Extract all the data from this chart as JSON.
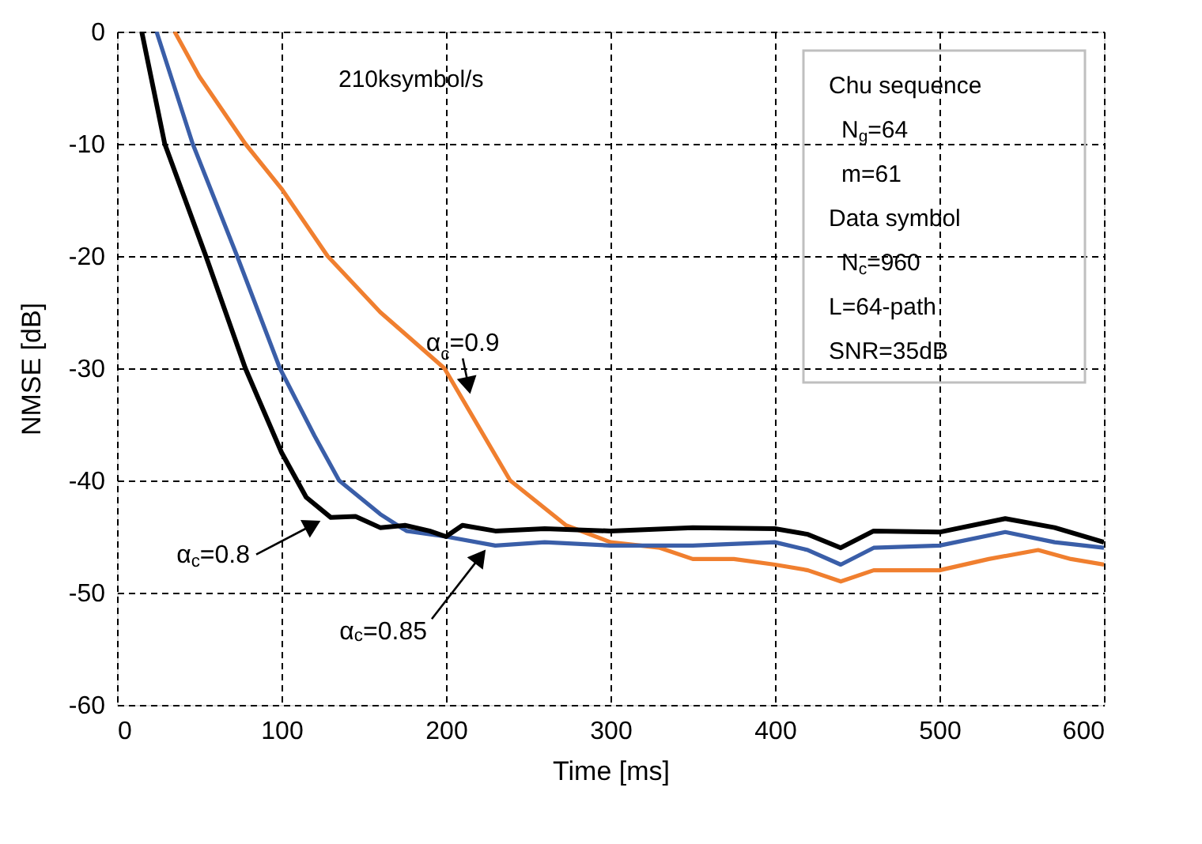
{
  "chart_data": {
    "type": "line",
    "xlabel": "Time [ms]",
    "ylabel": "NMSE [dB]",
    "xlim": [
      0,
      600
    ],
    "ylim": [
      -60,
      0
    ],
    "xticks": [
      0,
      100,
      200,
      300,
      400,
      500,
      600
    ],
    "yticks": [
      -60,
      -50,
      -40,
      -30,
      -20,
      -10,
      0
    ],
    "grid": true,
    "legend": false,
    "line_style": "solid",
    "marker": "none",
    "series": [
      {
        "color": "#f07f2f",
        "x": [
          35,
          50,
          78,
          100,
          128,
          160,
          199,
          239,
          273,
          300,
          330,
          350,
          375,
          400,
          420,
          440,
          460,
          500,
          530,
          560,
          580,
          600
        ],
        "values": [
          0,
          -4,
          -10,
          -14,
          -20,
          -25,
          -30,
          -40,
          -44,
          -45.5,
          -46,
          -47,
          -47,
          -47.5,
          -48,
          -49,
          -48,
          -48,
          -47,
          -46.2,
          -47,
          -47.5
        ]
      },
      {
        "color": "#3a5ea8",
        "x": [
          24,
          46,
          73,
          99,
          120,
          135,
          160,
          176,
          200,
          230,
          260,
          300,
          350,
          400,
          420,
          440,
          460,
          500,
          540,
          570,
          600
        ],
        "values": [
          0,
          -10,
          -20,
          -30,
          -36,
          -40,
          -43,
          -44.5,
          -45,
          -45.8,
          -45.5,
          -45.8,
          -45.8,
          -45.5,
          -46.2,
          -47.5,
          -46,
          -45.8,
          -44.6,
          -45.5,
          -46
        ]
      },
      {
        "color": "#000000",
        "x": [
          15,
          29,
          54,
          78,
          100,
          115,
          130,
          145,
          160,
          175,
          190,
          200,
          210,
          230,
          260,
          300,
          350,
          400,
          420,
          440,
          460,
          500,
          540,
          570,
          600
        ],
        "values": [
          0,
          -10,
          -20,
          -30,
          -37.5,
          -41.5,
          -43.3,
          -43.2,
          -44.2,
          -44,
          -44.5,
          -45,
          -44,
          -44.5,
          -44.3,
          -44.5,
          -44.2,
          -44.3,
          -44.8,
          -46,
          -44.5,
          -44.6,
          -43.4,
          -44.2,
          -45.5
        ]
      }
    ],
    "annotations": [
      "210ksymbol/s",
      "Chu sequence",
      " N$_{g}$=64",
      " m=61",
      "Data symbol",
      " N$_{c}$=960",
      "L=64-path",
      "SNR=35dB",
      {
        "text": "α$_{c}$=0.9",
        "x": 215,
        "y": -32.5
      },
      {
        "text": "α$_{c}$=0.8",
        "x": 125,
        "y": -43.5
      },
      {
        "text": "α$_{c}$=0.85",
        "x": 225,
        "y": -46
      }
    ]
  }
}
